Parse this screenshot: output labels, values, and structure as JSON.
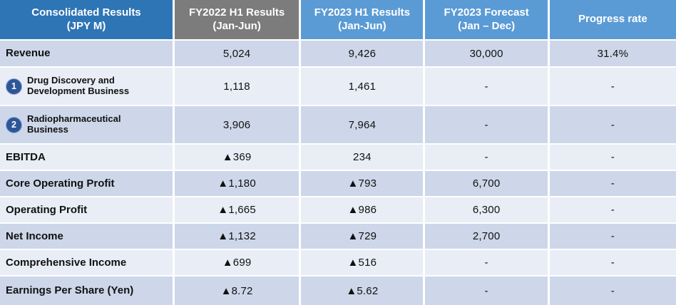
{
  "colors": {
    "header_primary": "#2E75B6",
    "header_gray": "#7C7C7C",
    "header_blue": "#5B9BD5",
    "row_tint": "#CDD7E9",
    "row_light": "#E9EDF5",
    "badge": "#2E5697",
    "text": "#111111",
    "grid_gap": "#FFFFFF"
  },
  "table": {
    "headers": [
      {
        "line1": "Consolidated Results",
        "line2": "(JPY M)"
      },
      {
        "line1": "FY2022 H1 Results",
        "line2": "(Jan-Jun)"
      },
      {
        "line1": "FY2023 H1 Results",
        "line2": "(Jan-Jun)"
      },
      {
        "line1": "FY2023 Forecast",
        "line2": "(Jan – Dec)"
      },
      {
        "line1": "Progress rate",
        "line2": ""
      }
    ],
    "rows": [
      {
        "badge": "",
        "label": "Revenue",
        "values": [
          "5,024",
          "9,426",
          "30,000",
          "31.4%"
        ]
      },
      {
        "badge": "1",
        "label": "Drug Discovery and Development Business",
        "values": [
          "1,118",
          "1,461",
          "-",
          "-"
        ]
      },
      {
        "badge": "2",
        "label": "Radiopharmaceutical Business",
        "values": [
          "3,906",
          "7,964",
          "-",
          "-"
        ]
      },
      {
        "badge": "",
        "label": "EBITDA",
        "values": [
          "▲369",
          "234",
          "-",
          "-"
        ]
      },
      {
        "badge": "",
        "label": "Core Operating Profit",
        "values": [
          "▲1,180",
          "▲793",
          "6,700",
          "-"
        ]
      },
      {
        "badge": "",
        "label": "Operating Profit",
        "values": [
          "▲1,665",
          "▲986",
          "6,300",
          "-"
        ]
      },
      {
        "badge": "",
        "label": "Net Income",
        "values": [
          "▲1,132",
          "▲729",
          "2,700",
          "-"
        ]
      },
      {
        "badge": "",
        "label": "Comprehensive Income",
        "values": [
          "▲699",
          "▲516",
          "-",
          "-"
        ]
      },
      {
        "badge": "",
        "label": "Earnings Per Share (Yen)",
        "values": [
          "▲8.72",
          "▲5.62",
          "-",
          "-"
        ]
      }
    ]
  },
  "chart_data": {
    "type": "table",
    "columns": [
      "Consolidated Results (JPY M)",
      "FY2022 H1 Results (Jan-Jun)",
      "FY2023 H1 Results (Jan-Jun)",
      "FY2023 Forecast (Jan – Dec)",
      "Progress rate"
    ],
    "rows": [
      [
        "Revenue",
        "5,024",
        "9,426",
        "30,000",
        "31.4%"
      ],
      [
        "① Drug Discovery and Development Business",
        "1,118",
        "1,461",
        "-",
        "-"
      ],
      [
        "② Radiopharmaceutical Business",
        "3,906",
        "7,964",
        "-",
        "-"
      ],
      [
        "EBITDA",
        "▲369",
        "234",
        "-",
        "-"
      ],
      [
        "Core Operating Profit",
        "▲1,180",
        "▲793",
        "6,700",
        "-"
      ],
      [
        "Operating Profit",
        "▲1,665",
        "▲986",
        "6,300",
        "-"
      ],
      [
        "Net Income",
        "▲1,132",
        "▲729",
        "2,700",
        "-"
      ],
      [
        "Comprehensive Income",
        "▲699",
        "▲516",
        "-",
        "-"
      ],
      [
        "Earnings Per Share (Yen)",
        "▲8.72",
        "▲5.62",
        "-",
        "-"
      ]
    ]
  }
}
